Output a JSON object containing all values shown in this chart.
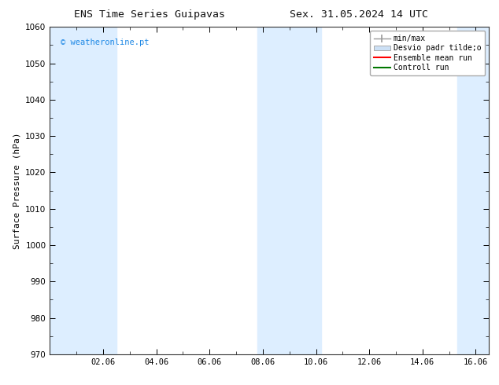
{
  "title_left": "ENS Time Series Guipavas",
  "title_right": "Sex. 31.05.2024 14 UTC",
  "ylabel": "Surface Pressure (hPa)",
  "ylim": [
    970,
    1060
  ],
  "yticks": [
    970,
    980,
    990,
    1000,
    1010,
    1020,
    1030,
    1040,
    1050,
    1060
  ],
  "xlim_start": 0,
  "xlim_end": 16.5,
  "xtick_labels": [
    "02.06",
    "04.06",
    "06.06",
    "08.06",
    "10.06",
    "12.06",
    "14.06",
    "16.06"
  ],
  "xtick_positions": [
    2,
    4,
    6,
    8,
    10,
    12,
    14,
    16
  ],
  "shaded_bands": [
    {
      "x_start": 0.0,
      "x_end": 2.5,
      "color": "#ddeeff"
    },
    {
      "x_start": 7.8,
      "x_end": 10.2,
      "color": "#ddeeff"
    },
    {
      "x_start": 15.3,
      "x_end": 16.5,
      "color": "#ddeeff"
    }
  ],
  "watermark_text": "© weatheronline.pt",
  "watermark_color": "#1e88e5",
  "background_color": "#ffffff",
  "plot_bg_color": "#ffffff",
  "title_fontsize": 9.5,
  "axis_label_fontsize": 8,
  "tick_fontsize": 7.5,
  "legend_fontsize": 7,
  "minmax_color": "#999999",
  "std_color": "#cce0f5",
  "ensemble_color": "#ff0000",
  "control_color": "#007700"
}
